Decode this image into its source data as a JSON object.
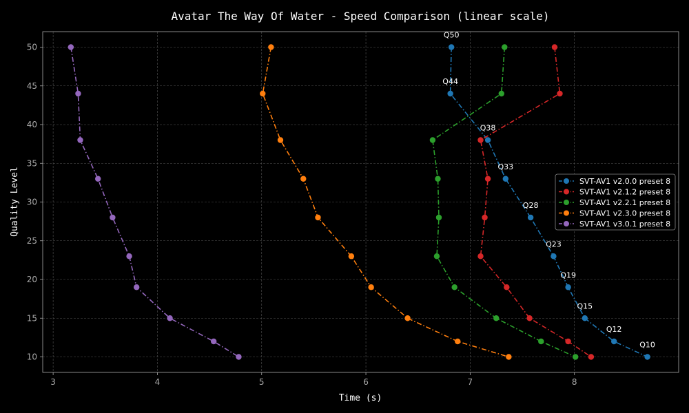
{
  "chart_data": {
    "type": "line",
    "title": "Avatar The Way Of Water - Speed Comparison (linear scale)",
    "xlabel": "Time (s)",
    "ylabel": "Quality Level",
    "xlim": [
      2.9,
      9.0
    ],
    "ylim": [
      8,
      52
    ],
    "xticks": [
      3,
      4,
      5,
      6,
      7,
      8
    ],
    "yticks": [
      10,
      15,
      20,
      25,
      30,
      35,
      40,
      45,
      50
    ],
    "grid": true,
    "legend_position": "center-right",
    "series": [
      {
        "name": "SVT-AV1 v2.0.0 preset 8",
        "color": "#1f77b4",
        "points": [
          [
            6.82,
            50
          ],
          [
            6.81,
            44
          ],
          [
            7.17,
            38
          ],
          [
            7.34,
            33
          ],
          [
            7.58,
            28
          ],
          [
            7.8,
            23
          ],
          [
            7.94,
            19
          ],
          [
            8.1,
            15
          ],
          [
            8.38,
            12
          ],
          [
            8.7,
            10
          ]
        ]
      },
      {
        "name": "SVT-AV1 v2.1.2 preset 8",
        "color": "#d62728",
        "points": [
          [
            7.81,
            50
          ],
          [
            7.86,
            44
          ],
          [
            7.1,
            38
          ],
          [
            7.17,
            33
          ],
          [
            7.14,
            28
          ],
          [
            7.1,
            23
          ],
          [
            7.35,
            19
          ],
          [
            7.57,
            15
          ],
          [
            7.94,
            12
          ],
          [
            8.16,
            10
          ]
        ]
      },
      {
        "name": "SVT-AV1 v2.2.1 preset 8",
        "color": "#2ca02c",
        "points": [
          [
            7.33,
            50
          ],
          [
            7.3,
            44
          ],
          [
            6.64,
            38
          ],
          [
            6.69,
            33
          ],
          [
            6.7,
            28
          ],
          [
            6.68,
            23
          ],
          [
            6.85,
            19
          ],
          [
            7.25,
            15
          ],
          [
            7.68,
            12
          ],
          [
            8.01,
            10
          ]
        ]
      },
      {
        "name": "SVT-AV1 v2.3.0 preset 8",
        "color": "#ff7f0e",
        "points": [
          [
            5.09,
            50
          ],
          [
            5.01,
            44
          ],
          [
            5.18,
            38
          ],
          [
            5.4,
            33
          ],
          [
            5.54,
            28
          ],
          [
            5.86,
            23
          ],
          [
            6.05,
            19
          ],
          [
            6.4,
            15
          ],
          [
            6.88,
            12
          ],
          [
            7.37,
            10
          ]
        ]
      },
      {
        "name": "SVT-AV1 v3.0.1 preset 8",
        "color": "#9467bd",
        "points": [
          [
            3.17,
            50
          ],
          [
            3.24,
            44
          ],
          [
            3.26,
            38
          ],
          [
            3.43,
            33
          ],
          [
            3.57,
            28
          ],
          [
            3.73,
            23
          ],
          [
            3.8,
            19
          ],
          [
            4.12,
            15
          ],
          [
            4.54,
            12
          ],
          [
            4.78,
            10
          ]
        ]
      }
    ],
    "annotations": [
      {
        "text": "Q50",
        "x": 6.82,
        "y": 50
      },
      {
        "text": "Q44",
        "x": 6.81,
        "y": 44
      },
      {
        "text": "Q38",
        "x": 7.17,
        "y": 38
      },
      {
        "text": "Q33",
        "x": 7.34,
        "y": 33
      },
      {
        "text": "Q28",
        "x": 7.58,
        "y": 28
      },
      {
        "text": "Q23",
        "x": 7.8,
        "y": 23
      },
      {
        "text": "Q19",
        "x": 7.94,
        "y": 19
      },
      {
        "text": "Q15",
        "x": 8.1,
        "y": 15
      },
      {
        "text": "Q12",
        "x": 8.38,
        "y": 12
      },
      {
        "text": "Q10",
        "x": 8.7,
        "y": 10
      }
    ]
  }
}
